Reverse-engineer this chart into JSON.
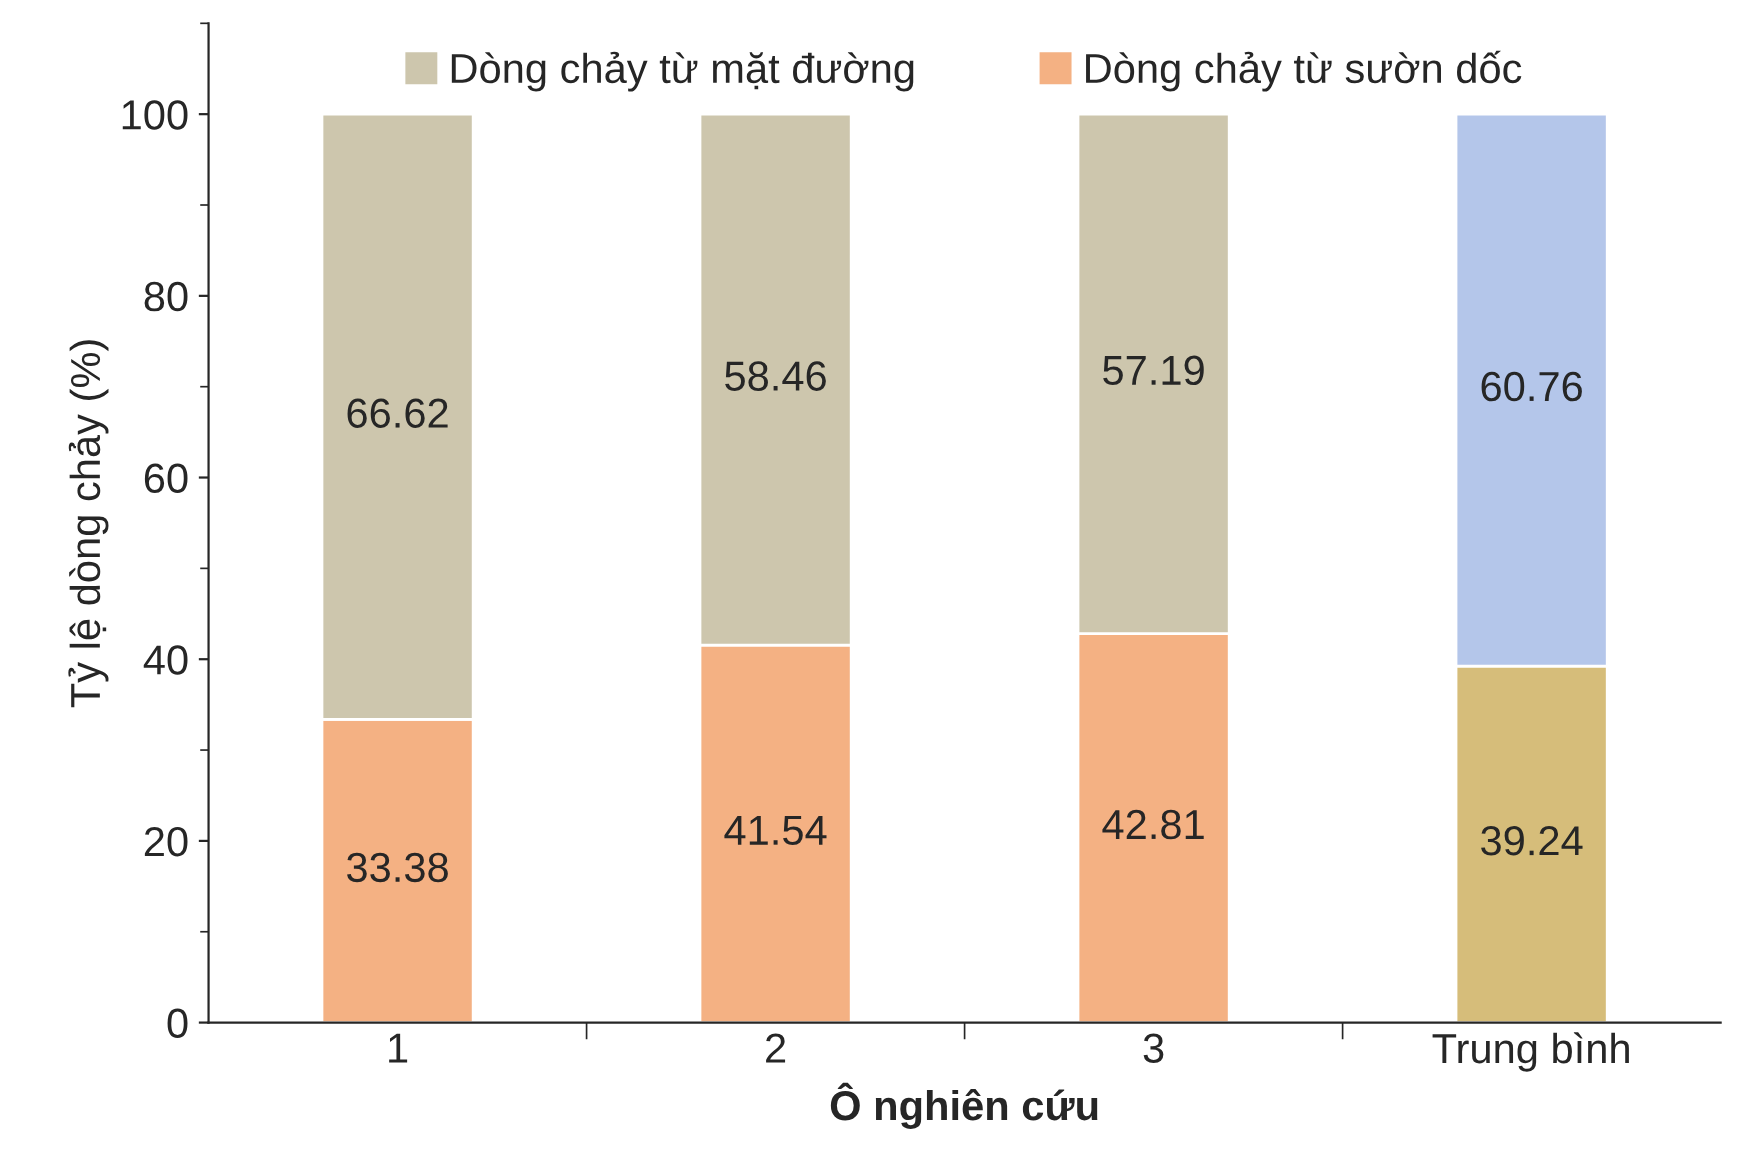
{
  "chart_data": {
    "type": "bar",
    "stacked": true,
    "xlabel": "Ô nghiên cứu",
    "ylabel": "Tỷ lệ dòng chảy (%)",
    "categories": [
      "1",
      "2",
      "3",
      "Trung bình"
    ],
    "series": [
      {
        "name": "Dòng chảy từ sườn dốc",
        "color": "#f4b183",
        "colors": [
          "#f4b183",
          "#f4b183",
          "#f4b183",
          "#d6bd7a"
        ],
        "values": [
          33.38,
          41.54,
          42.81,
          39.24
        ]
      },
      {
        "name": "Dòng chảy từ mặt đường",
        "color": "#cdc6ad",
        "colors": [
          "#cdc6ad",
          "#cdc6ad",
          "#cdc6ad",
          "#b4c6ea"
        ],
        "values": [
          66.62,
          58.46,
          57.19,
          60.76
        ]
      }
    ],
    "ylim": [
      0,
      110
    ],
    "yticks": [
      0,
      20,
      40,
      60,
      80,
      100
    ],
    "data_labels": true,
    "legend": "top",
    "grid": false
  }
}
